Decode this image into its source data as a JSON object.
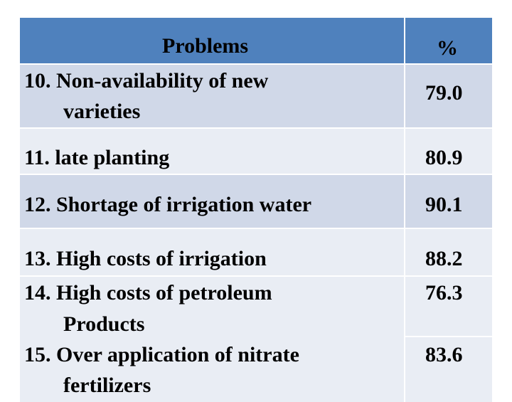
{
  "table": {
    "header": {
      "problems": "Problems",
      "percent": "%"
    },
    "rows": [
      {
        "label_line1": "10. Non-availability of new",
        "label_line2": "varieties",
        "value": "79.0"
      },
      {
        "label": "11. late planting",
        "value": "80.9"
      },
      {
        "label": "12. Shortage of irrigation water",
        "value": "90.1"
      },
      {
        "items": [
          {
            "label": "13. High costs of irrigation",
            "value": "88.2"
          },
          {
            "label_line1": "14. High costs of petroleum",
            "label_line2": "Products",
            "value": "76.3"
          },
          {
            "label_line1": "15. Over application of nitrate",
            "label_line2": "fertilizers",
            "value": "83.6"
          }
        ]
      }
    ]
  }
}
